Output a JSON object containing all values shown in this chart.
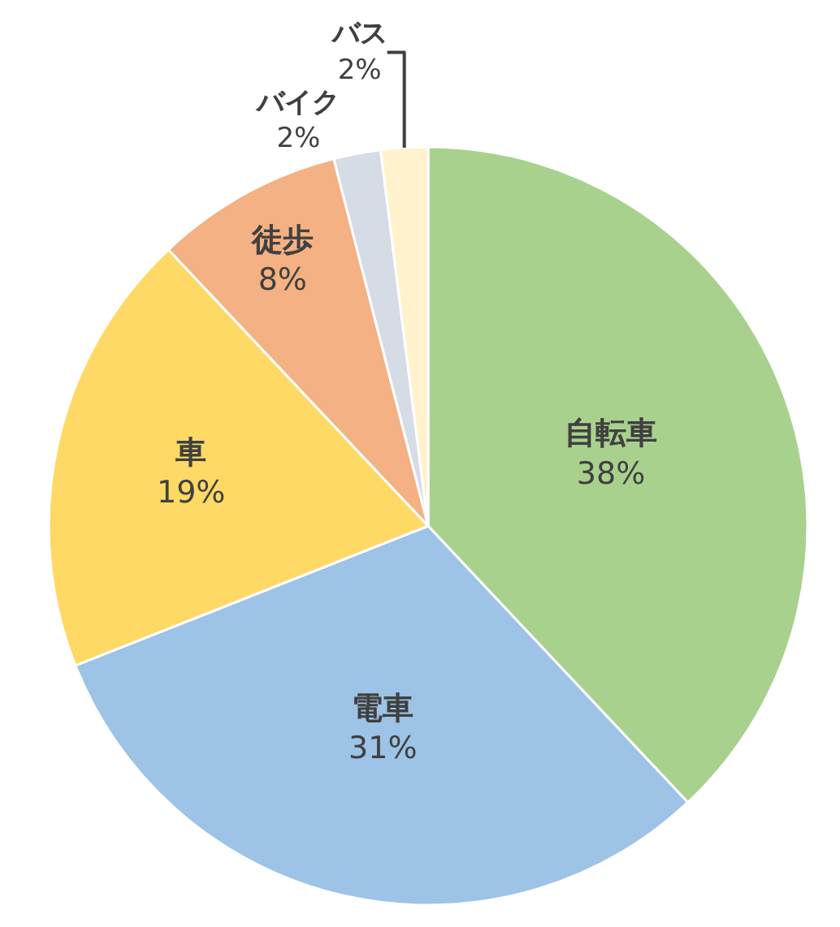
{
  "chart_data": {
    "type": "pie",
    "categories": [
      "自転車",
      "電車",
      "車",
      "徒歩",
      "バイク",
      "バス"
    ],
    "values": [
      38,
      31,
      19,
      8,
      2,
      2
    ],
    "value_labels": [
      "38%",
      "31%",
      "19%",
      "8%",
      "2%",
      "2%"
    ],
    "colors": [
      "#a9d18e",
      "#9dc3e6",
      "#ffd966",
      "#f4b183",
      "#d6dce5",
      "#fff2cc"
    ],
    "legend": false
  }
}
